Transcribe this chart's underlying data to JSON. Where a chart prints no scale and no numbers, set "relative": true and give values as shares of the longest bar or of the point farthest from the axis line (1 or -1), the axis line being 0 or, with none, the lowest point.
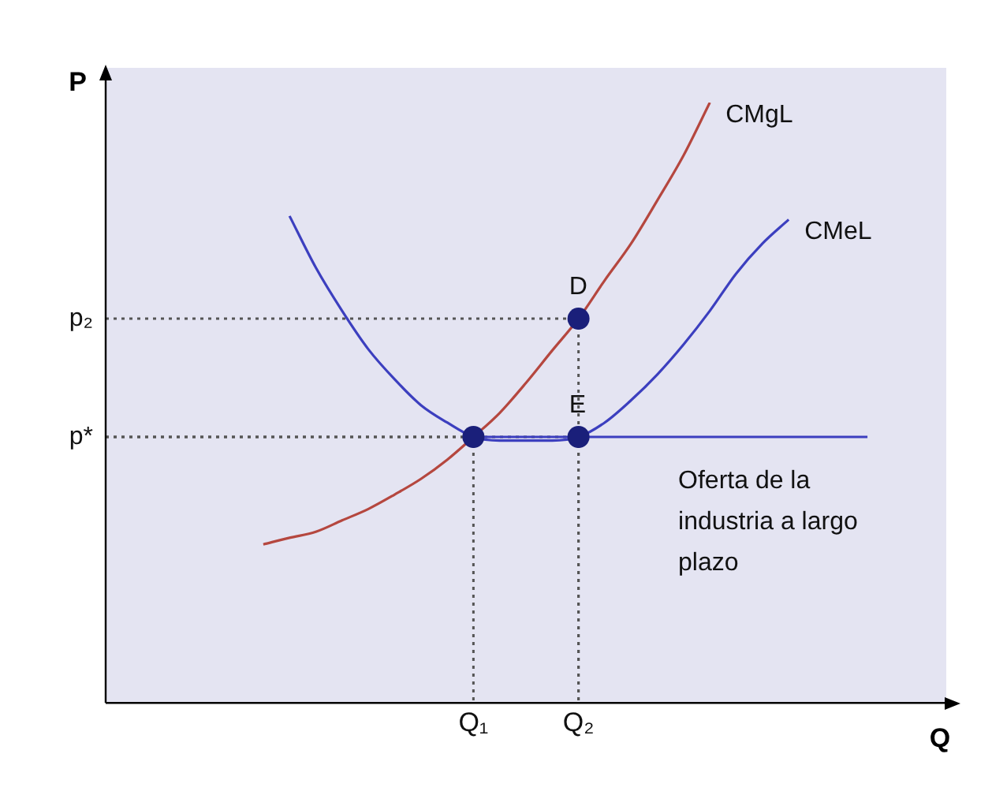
{
  "chart_data": {
    "type": "line",
    "relative": true,
    "xlabel": "Q",
    "ylabel": "P",
    "categories": [
      null,
      null,
      null,
      null,
      null,
      null,
      null,
      null,
      null,
      null,
      null,
      null,
      null,
      null,
      "Q₁",
      null,
      null,
      null,
      "Q₂",
      null,
      null,
      null,
      null,
      null,
      null,
      null,
      null,
      null,
      null,
      null,
      null,
      null,
      null
    ],
    "grid": false,
    "legend": false,
    "marker": "none",
    "line_style": "solid",
    "series": [
      {
        "name": "CMgL",
        "color": "#b5473f",
        "values": [
          null,
          null,
          null,
          null,
          null,
          null,
          0.264,
          0.275,
          0.285,
          0.304,
          0.323,
          0.347,
          0.373,
          0.405,
          0.443,
          0.483,
          0.533,
          0.587,
          0.64,
          0.704,
          0.765,
          0.837,
          0.912,
          1,
          null,
          null,
          null,
          null,
          null,
          null,
          null,
          null,
          null
        ]
      },
      {
        "name": "CMeL",
        "color": "#3c3fbf",
        "values": [
          null,
          null,
          null,
          null,
          null,
          null,
          null,
          0.811,
          0.725,
          0.653,
          0.589,
          0.539,
          0.496,
          0.467,
          0.443,
          0.437,
          0.437,
          0.437,
          0.443,
          0.467,
          0.504,
          0.547,
          0.597,
          0.653,
          0.715,
          0.765,
          0.805,
          null,
          null,
          null,
          null,
          null,
          null
        ]
      },
      {
        "name": "Oferta de la industria a largo plazo",
        "color": "#3c3fbf",
        "values": [
          null,
          null,
          null,
          null,
          null,
          null,
          null,
          null,
          null,
          null,
          null,
          null,
          null,
          null,
          0.443,
          0.443,
          0.443,
          0.443,
          0.443,
          0.443,
          0.443,
          0.443,
          0.443,
          0.443,
          0.443,
          0.443,
          0.443,
          0.443,
          0.443,
          0.443,
          null,
          null,
          null
        ]
      },
      {
        "type": "scatter",
        "marker": "circle",
        "color": "#1a1f7a",
        "values": [
          null,
          null,
          null,
          null,
          null,
          null,
          null,
          null,
          null,
          null,
          null,
          null,
          null,
          null,
          0.443,
          null,
          null,
          null,
          0.443,
          null,
          null,
          null,
          null,
          null,
          null,
          null,
          null,
          null,
          null,
          null,
          null,
          null,
          null
        ]
      },
      {
        "type": "scatter",
        "marker": "circle",
        "color": "#1a1f7a",
        "values": [
          null,
          null,
          null,
          null,
          null,
          null,
          null,
          null,
          null,
          null,
          null,
          null,
          null,
          null,
          null,
          null,
          null,
          null,
          0.64,
          null,
          null,
          null,
          null,
          null,
          null,
          null,
          null,
          null,
          null,
          null,
          null,
          null,
          null
        ]
      }
    ],
    "annotations": [
      {
        "text": "D",
        "x": "Q₂",
        "y": 0.64
      },
      {
        "text": "E",
        "x": "Q₂",
        "y": 0.443
      },
      "p₂",
      "p*"
    ]
  }
}
